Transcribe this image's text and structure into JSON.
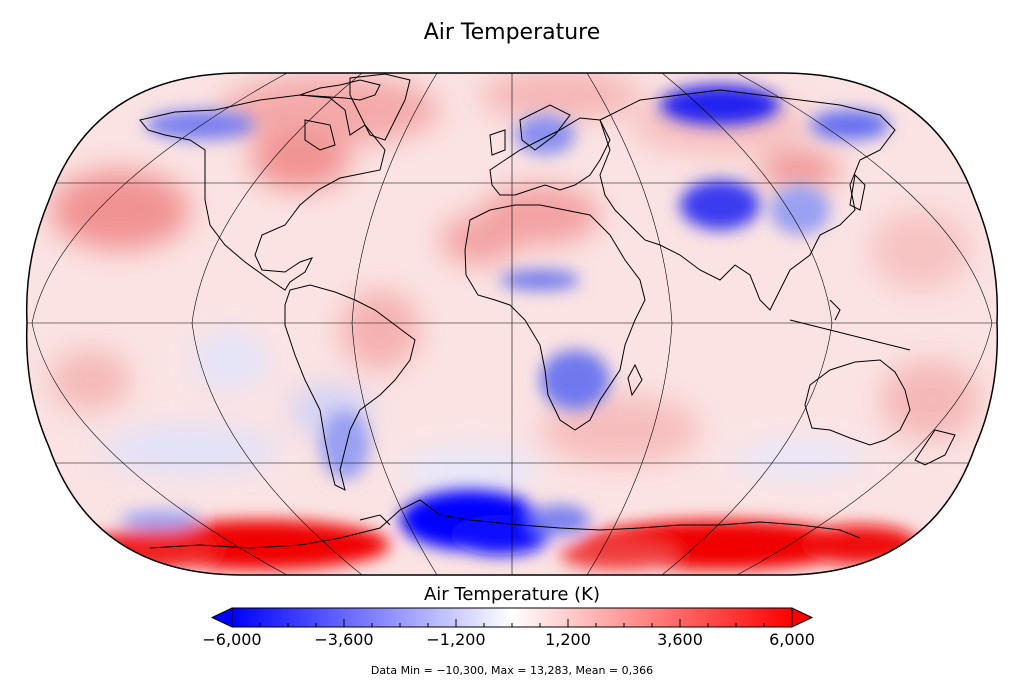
{
  "title": "Air Temperature",
  "colorbar": {
    "label": "Air Temperature (K)",
    "ticks": [
      "−6,000",
      "−3,600",
      "−1,200",
      "1,200",
      "3,600",
      "6,000"
    ],
    "min": -6000,
    "max": 6000,
    "colors": {
      "low": "#0000ff",
      "mid": "#ffffff",
      "high": "#ff0000"
    }
  },
  "stats": "Data Min = −10,300, Max = 13,283, Mean = 0,366",
  "projection": "Robinson",
  "colors": {
    "land_outline": "#000000",
    "grid": "#000000"
  }
}
